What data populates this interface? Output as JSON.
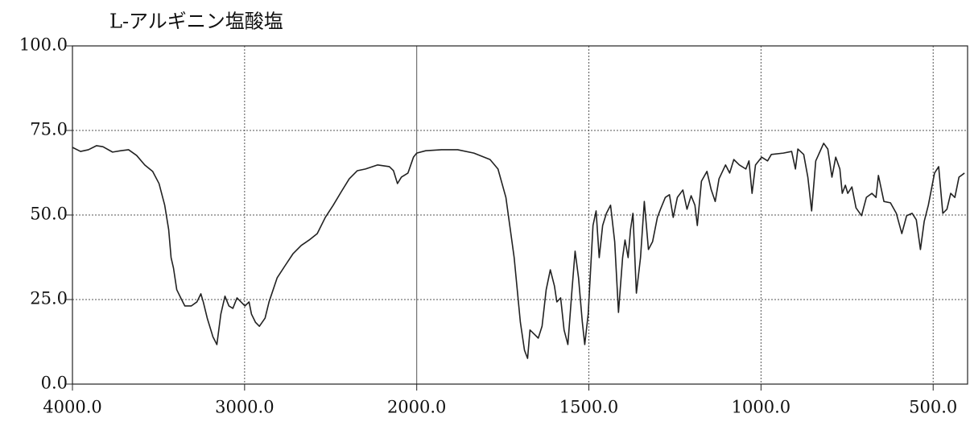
{
  "chart_data": {
    "type": "line",
    "title": "L-アルギニン塩酸塩",
    "x": [
      4000,
      3953,
      3907,
      3860,
      3823,
      3767,
      3720,
      3674,
      3627,
      3580,
      3534,
      3497,
      3464,
      3441,
      3427,
      3413,
      3394,
      3371,
      3347,
      3310,
      3277,
      3254,
      3240,
      3217,
      3184,
      3161,
      3138,
      3114,
      3091,
      3068,
      3044,
      3021,
      2998,
      2974,
      2960,
      2937,
      2914,
      2881,
      2858,
      2811,
      2765,
      2718,
      2671,
      2625,
      2578,
      2531,
      2485,
      2438,
      2392,
      2345,
      2298,
      2228,
      2159,
      2135,
      2112,
      2089,
      2051,
      2019,
      2000,
      1974,
      1928,
      1881,
      1834,
      1787,
      1764,
      1741,
      1717,
      1699,
      1687,
      1678,
      1671,
      1659,
      1647,
      1636,
      1624,
      1612,
      1600,
      1593,
      1582,
      1572,
      1561,
      1549,
      1540,
      1530,
      1519,
      1512,
      1502,
      1488,
      1479,
      1470,
      1460,
      1449,
      1437,
      1425,
      1414,
      1402,
      1395,
      1386,
      1379,
      1372,
      1362,
      1350,
      1339,
      1327,
      1315,
      1301,
      1292,
      1278,
      1266,
      1255,
      1243,
      1227,
      1215,
      1203,
      1192,
      1185,
      1173,
      1157,
      1145,
      1133,
      1122,
      1103,
      1091,
      1079,
      1063,
      1044,
      1035,
      1026,
      1016,
      998,
      981,
      970,
      935,
      911,
      900,
      893,
      876,
      864,
      853,
      841,
      818,
      806,
      794,
      783,
      771,
      764,
      755,
      748,
      736,
      724,
      708,
      694,
      678,
      666,
      659,
      643,
      624,
      607,
      591,
      577,
      561,
      549,
      537,
      526,
      514,
      496,
      484,
      472,
      460,
      449,
      437,
      425,
      409
    ],
    "series": [
      {
        "color": "#222222",
        "values": [
          70,
          68.8,
          69.3,
          70.5,
          70.2,
          68.6,
          69,
          69.3,
          67.6,
          64.8,
          62.9,
          59.3,
          52.9,
          45.7,
          37.4,
          34.3,
          27.9,
          25.5,
          23.1,
          23.1,
          24.3,
          26.7,
          24.3,
          19.5,
          14,
          11.7,
          20.7,
          26,
          23.1,
          22.4,
          25.5,
          24.3,
          23.1,
          24.3,
          20.7,
          18.3,
          17.1,
          19.5,
          24.3,
          31.4,
          35,
          38.6,
          41,
          42.6,
          44.5,
          49.3,
          52.9,
          56.9,
          60.7,
          63.1,
          63.6,
          64.8,
          64.3,
          63.1,
          59.3,
          61.2,
          62.4,
          67.1,
          68.3,
          69,
          69.3,
          69.3,
          68.3,
          66.4,
          63.6,
          55.2,
          37.4,
          18.3,
          10,
          7.6,
          16,
          14.8,
          13.6,
          17.1,
          27.9,
          33.8,
          29,
          24.3,
          25.5,
          16,
          11.7,
          27.9,
          39.3,
          31.4,
          18.3,
          11.7,
          20.7,
          46.9,
          51.2,
          37.4,
          46.9,
          50.5,
          52.9,
          42.1,
          21.2,
          37.4,
          42.6,
          37.4,
          45.7,
          50.5,
          26.9,
          37.4,
          54,
          39.8,
          42.1,
          49.3,
          51.7,
          55.2,
          56,
          49.3,
          55.2,
          57.4,
          51.7,
          55.7,
          52.9,
          46.9,
          60,
          62.9,
          57.6,
          54,
          60.7,
          64.8,
          62.4,
          66.4,
          64.8,
          63.6,
          66,
          56.4,
          64.8,
          67.1,
          66,
          67.9,
          68.3,
          68.8,
          63.6,
          69.5,
          67.9,
          61.2,
          51.2,
          66,
          71.2,
          69.5,
          61.2,
          67.1,
          63.6,
          56.4,
          58.8,
          56.4,
          58.3,
          52.1,
          49.8,
          55.2,
          56.4,
          55.2,
          61.7,
          54,
          53.6,
          50.5,
          44.5,
          49.8,
          50.5,
          48.6,
          39.8,
          48.1,
          52.9,
          62.4,
          64.3,
          50.5,
          51.7,
          56.4,
          55.2,
          61.2,
          62.4
        ]
      }
    ],
    "xlim": [
      4000,
      400
    ],
    "x_scale_change": {
      "at": 2000,
      "factor": 2
    },
    "xticks": [
      {
        "value": 4000,
        "label": "4000.0"
      },
      {
        "value": 3000,
        "label": "3000.0"
      },
      {
        "value": 2000,
        "label": "2000.0"
      },
      {
        "value": 1500,
        "label": "1500.0"
      },
      {
        "value": 1000,
        "label": "1000.0"
      },
      {
        "value": 500,
        "label": "500.0"
      }
    ],
    "ylim": [
      0,
      100
    ],
    "yticks": [
      {
        "value": 0,
        "label": "0.0"
      },
      {
        "value": 25,
        "label": "25.0"
      },
      {
        "value": 50,
        "label": "50.0"
      },
      {
        "value": 75,
        "label": "75.0"
      },
      {
        "value": 100,
        "label": "100.0"
      }
    ],
    "grid": true
  }
}
